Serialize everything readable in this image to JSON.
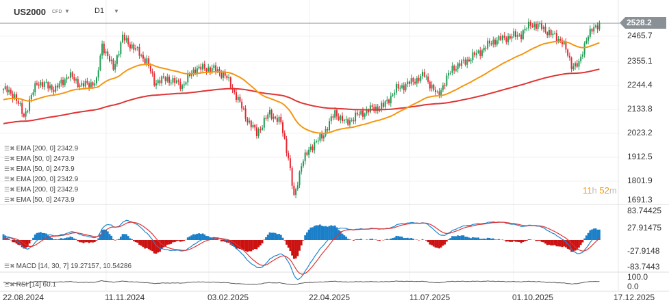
{
  "header": {
    "symbol": "US2000",
    "type": "CFD",
    "timeframe": "D1"
  },
  "price_axis": {
    "labels": [
      "2465.7",
      "2355.1",
      "2244.4",
      "2133.8",
      "2023.2",
      "1912.5",
      "1801.9",
      "1691.3"
    ],
    "current": "2528.2",
    "current_color": "#8a9196"
  },
  "macd_axis": {
    "labels": [
      "83.74425",
      "27.91475",
      "-27.9148",
      "-83.7443"
    ]
  },
  "rsi_axis": {
    "labels": [
      "100.0",
      "0.0"
    ]
  },
  "date_axis": {
    "labels": [
      "22.08.2024",
      "11.11.2024",
      "03.02.2025",
      "22.04.2025",
      "11.07.2025",
      "01.10.2025",
      "17.12.2025"
    ]
  },
  "countdown": {
    "hours": "11",
    "h": "h",
    "minutes": "52",
    "m": "m"
  },
  "legend": [
    "EMA [200, 0] 2342.9",
    "EMA [50, 0] 2473.9",
    "EMA [50, 0] 2473.9",
    "EMA [200, 0] 2342.9",
    "EMA [200, 0] 2342.9",
    "EMA [50, 0] 2473.9"
  ],
  "macd_legend": "MACD [14, 30, 7] 19.27157,  10.54286",
  "rsi_legend": "RSI [14] 60.1",
  "colors": {
    "up": "#1e9a52",
    "down": "#e5262f",
    "ema50": "#f5960f",
    "ema200": "#e03333",
    "macd": "#1a86d0",
    "signal": "#e03333",
    "hist_up": "#1a7fc8",
    "hist_down": "#cc1111"
  },
  "chart_data": {
    "type": "candlestick",
    "note_units": "approximate closes by trading-day index",
    "anchors": [
      [
        0,
        2222
      ],
      [
        6,
        2191
      ],
      [
        11,
        2096
      ],
      [
        18,
        2254
      ],
      [
        28,
        2222
      ],
      [
        35,
        2286
      ],
      [
        42,
        2238
      ],
      [
        50,
        2254
      ],
      [
        53,
        2428
      ],
      [
        59,
        2317
      ],
      [
        64,
        2459
      ],
      [
        72,
        2396
      ],
      [
        77,
        2349
      ],
      [
        81,
        2254
      ],
      [
        88,
        2270
      ],
      [
        96,
        2238
      ],
      [
        103,
        2317
      ],
      [
        112,
        2317
      ],
      [
        119,
        2286
      ],
      [
        125,
        2191
      ],
      [
        131,
        2080
      ],
      [
        136,
        2017
      ],
      [
        143,
        2112
      ],
      [
        149,
        2064
      ],
      [
        153,
        1906
      ],
      [
        156,
        1717
      ],
      [
        160,
        1875
      ],
      [
        165,
        1954
      ],
      [
        171,
        2001
      ],
      [
        178,
        2112
      ],
      [
        184,
        2064
      ],
      [
        189,
        2096
      ],
      [
        197,
        2128
      ],
      [
        204,
        2143
      ],
      [
        211,
        2222
      ],
      [
        219,
        2254
      ],
      [
        226,
        2286
      ],
      [
        233,
        2191
      ],
      [
        241,
        2317
      ],
      [
        248,
        2349
      ],
      [
        256,
        2396
      ],
      [
        263,
        2444
      ],
      [
        270,
        2459
      ],
      [
        278,
        2475
      ],
      [
        283,
        2523
      ],
      [
        289,
        2507
      ],
      [
        294,
        2475
      ],
      [
        300,
        2444
      ],
      [
        305,
        2333
      ],
      [
        309,
        2333
      ],
      [
        313,
        2459
      ],
      [
        316,
        2491
      ],
      [
        320,
        2529
      ]
    ],
    "price_range": [
      1691.3,
      2528.2
    ],
    "indicators": [
      "EMA 50",
      "EMA 200",
      "MACD 14,30,7",
      "RSI 14"
    ]
  }
}
